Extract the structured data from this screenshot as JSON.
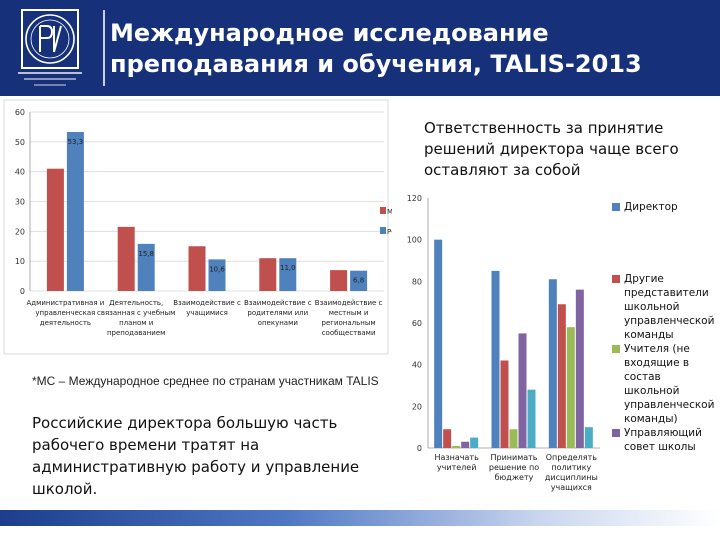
{
  "header": {
    "title": "Международное исследование преподавания и обучения, TALIS-2013"
  },
  "chart_data": [
    {
      "type": "bar",
      "ylim": [
        0,
        60
      ],
      "yticks": [
        "0",
        "10",
        "20",
        "30",
        "40",
        "50",
        "60"
      ],
      "categories": [
        [
          "Административная и",
          "управленческая",
          "деятельность"
        ],
        [
          "Деятельность,",
          "связанная с учебным",
          "планом и",
          "преподаванием"
        ],
        [
          "Взаимодействие с",
          "учащимися"
        ],
        [
          "Взаимодействие с",
          "родителями или",
          "опекунами"
        ],
        [
          "Взаимодействие с",
          "местным и",
          "региональным",
          "сообществами"
        ]
      ],
      "series": [
        {
          "name": "МС",
          "color": "#c0504d",
          "values": [
            41,
            21.5,
            15,
            11,
            7
          ]
        },
        {
          "name": "РФ",
          "color": "#4f81bd",
          "values": [
            53.3,
            15.8,
            10.6,
            11.0,
            6.8
          ]
        }
      ],
      "data_labels": [
        "53,3",
        "15,8",
        "10,6",
        "11,0",
        "6,8"
      ],
      "legend_position": "right"
    },
    {
      "type": "bar",
      "title": "Ответственность за принятие решений директора чаще всего оставляют за собой",
      "ylim": [
        0,
        120
      ],
      "yticks": [
        "0",
        "20",
        "40",
        "60",
        "80",
        "100",
        "120"
      ],
      "categories": [
        [
          "Назначать",
          "учителей"
        ],
        [
          "Принимать",
          "решение по",
          "бюджету"
        ],
        [
          "Определять",
          "политику",
          "дисциплины",
          "учащихся"
        ]
      ],
      "series": [
        {
          "name": "Директор",
          "color": "#4f81bd",
          "values": [
            100,
            85,
            81
          ]
        },
        {
          "name": "Другие представители школьной управленческой команды",
          "color": "#c0504d",
          "values": [
            9,
            42,
            69
          ]
        },
        {
          "name": "Учителя (не входящие в состав школьной управленческой команды)",
          "color": "#9bbb59",
          "values": [
            1,
            9,
            58
          ]
        },
        {
          "name": "Управляющий совет школы",
          "color": "#8064a2",
          "values": [
            3,
            55,
            76
          ]
        },
        {
          "name": "",
          "color": "#4bacc6",
          "values": [
            5,
            28,
            10
          ]
        }
      ],
      "legend_position": "right"
    }
  ],
  "footnote": "*МС – Международное среднее по странам участникам TALIS",
  "summary": "Российские директора большую часть рабочего времени тратят на административную работу и управление школой.",
  "colors": {
    "header_bg": "#16317a",
    "series_red": "#c0504d",
    "series_blue": "#4f81bd"
  }
}
